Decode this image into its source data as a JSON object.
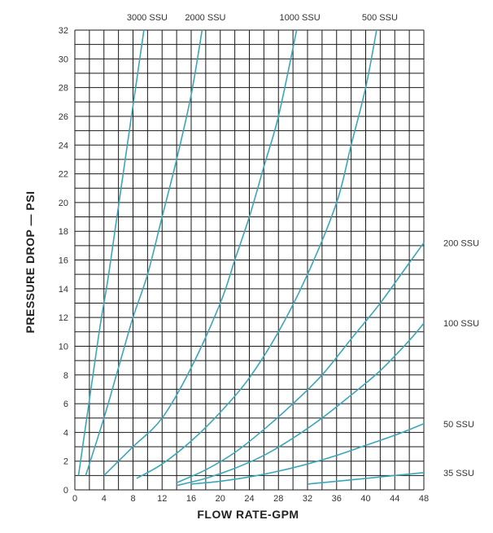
{
  "chart_data": {
    "type": "line",
    "title": "",
    "xlabel": "FLOW RATE-GPM",
    "ylabel": "PRESSURE DROP — PSI",
    "xlim": [
      0,
      48
    ],
    "ylim": [
      0,
      32
    ],
    "xticks": [
      0,
      4,
      8,
      12,
      16,
      20,
      24,
      28,
      32,
      36,
      40,
      44,
      48
    ],
    "yticks": [
      0,
      2,
      4,
      6,
      8,
      10,
      12,
      14,
      16,
      18,
      20,
      22,
      24,
      26,
      28,
      30,
      32
    ],
    "grid": true,
    "grid_step_x": 2,
    "grid_step_y": 1,
    "curve_color": "#3aa7b8",
    "series": [
      {
        "name": "3000 SSU",
        "label_position": "top",
        "x": [
          0.5,
          1.5,
          2.5,
          3.5,
          4.5,
          5.5,
          6.5,
          7.5,
          8.5,
          9.5
        ],
        "y": [
          1,
          4.5,
          8,
          11.5,
          14.5,
          18,
          21.5,
          25,
          28.5,
          32
        ]
      },
      {
        "name": "2000 SSU",
        "label_position": "top",
        "x": [
          1.5,
          4,
          6,
          8,
          10,
          12,
          14,
          16,
          17.5
        ],
        "y": [
          1,
          5,
          8.5,
          12,
          15,
          19,
          23,
          27.5,
          32
        ]
      },
      {
        "name": "1000 SSU",
        "label_position": "top",
        "x": [
          4,
          8,
          12,
          16,
          20,
          22,
          24,
          26,
          28,
          30.5
        ],
        "y": [
          1,
          3,
          5,
          8.5,
          13,
          16,
          19,
          22.5,
          26,
          32
        ]
      },
      {
        "name": "500 SSU",
        "label_position": "top",
        "x": [
          8.5,
          12,
          16,
          20,
          24,
          28,
          32,
          36,
          38,
          40,
          41.5
        ],
        "y": [
          0.8,
          1.8,
          3.4,
          5.4,
          7.8,
          11,
          15,
          20,
          24,
          28,
          32
        ]
      },
      {
        "name": "200 SSU",
        "label_position": "right",
        "x": [
          14,
          18,
          22,
          26,
          30,
          34,
          38,
          42,
          46,
          48
        ],
        "y": [
          0.5,
          1.4,
          2.6,
          4.2,
          6,
          8,
          10.5,
          13,
          15.8,
          17.2
        ]
      },
      {
        "name": "100 SSU",
        "label_position": "right",
        "x": [
          14,
          18,
          22,
          26,
          30,
          34,
          38,
          42,
          46,
          48
        ],
        "y": [
          0.3,
          0.8,
          1.5,
          2.4,
          3.6,
          5,
          6.6,
          8.3,
          10.4,
          11.6
        ]
      },
      {
        "name": "50 SSU",
        "label_position": "right",
        "x": [
          16,
          20,
          24,
          28,
          32,
          36,
          40,
          44,
          48
        ],
        "y": [
          0.4,
          0.6,
          0.9,
          1.3,
          1.8,
          2.4,
          3.1,
          3.8,
          4.6
        ]
      },
      {
        "name": "35 SSU",
        "label_position": "right",
        "x": [
          32,
          36,
          40,
          44,
          48
        ],
        "y": [
          0.4,
          0.6,
          0.8,
          1,
          1.2
        ]
      }
    ]
  }
}
